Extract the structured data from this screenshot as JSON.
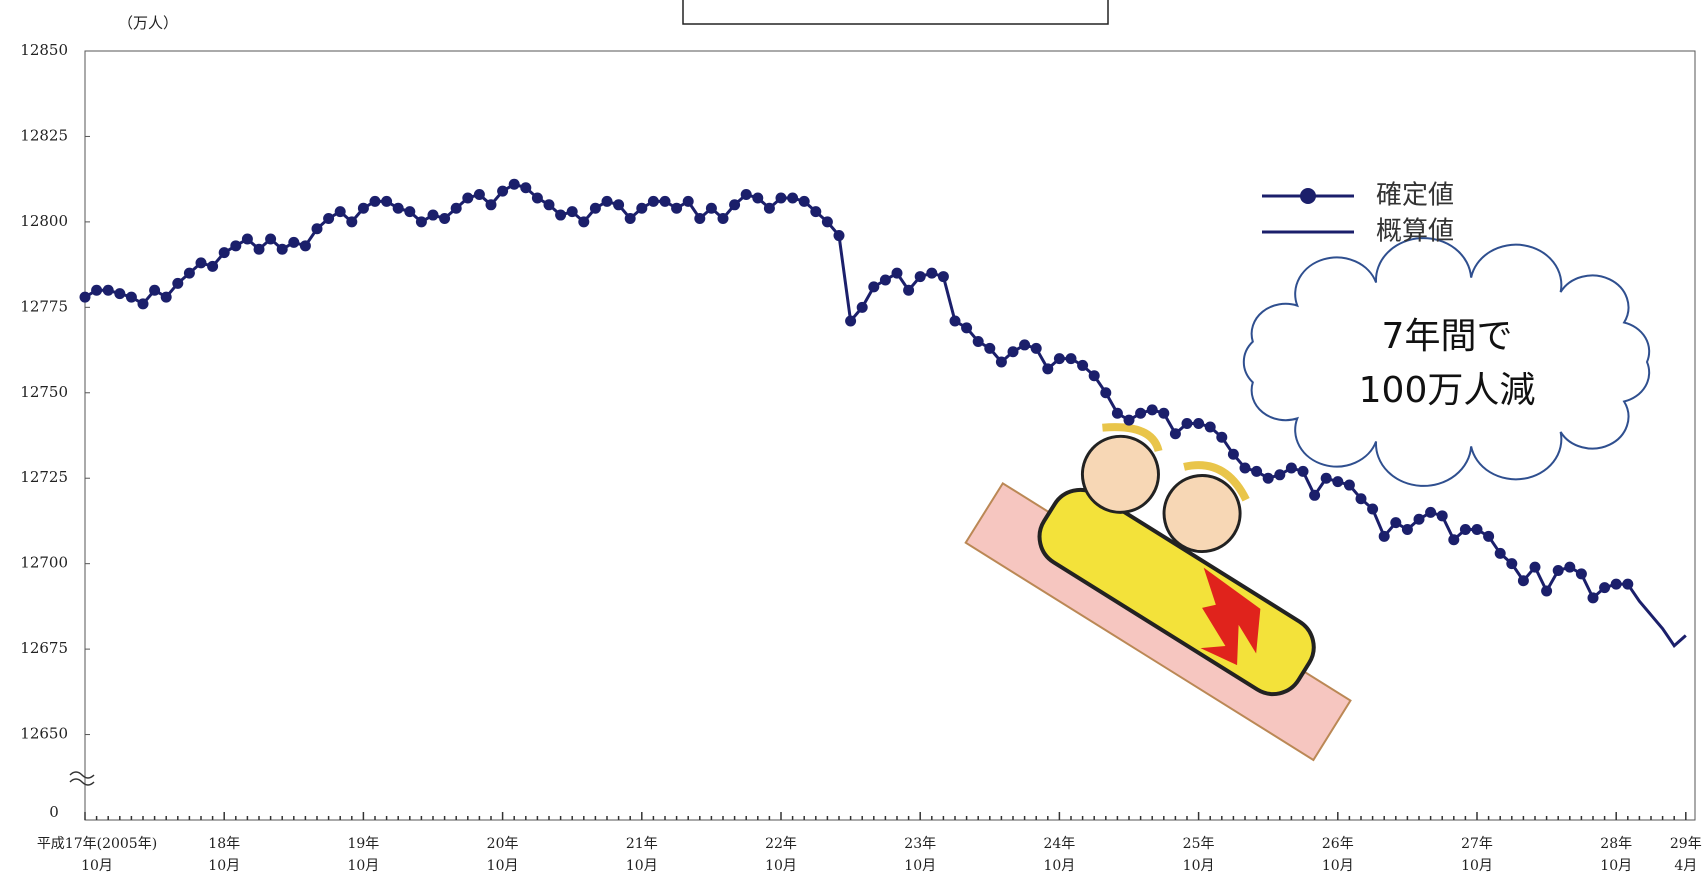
{
  "chart_data": {
    "type": "line",
    "y_label": "（万人）",
    "ylim": [
      12625,
      12850
    ],
    "yticks": [
      12650,
      12675,
      12700,
      12725,
      12750,
      12775,
      12800,
      12825,
      12850
    ],
    "y_break_label": "0",
    "categories": [
      [
        "平成17年(2005年)",
        "10月"
      ],
      null,
      null,
      null,
      null,
      null,
      null,
      null,
      null,
      null,
      null,
      null,
      [
        "18年",
        "10月"
      ],
      null,
      null,
      null,
      null,
      null,
      null,
      null,
      null,
      null,
      null,
      null,
      [
        "19年",
        "10月"
      ],
      null,
      null,
      null,
      null,
      null,
      null,
      null,
      null,
      null,
      null,
      null,
      [
        "20年",
        "10月"
      ],
      null,
      null,
      null,
      null,
      null,
      null,
      null,
      null,
      null,
      null,
      null,
      [
        "21年",
        "10月"
      ],
      null,
      null,
      null,
      null,
      null,
      null,
      null,
      null,
      null,
      null,
      null,
      [
        "22年",
        "10月"
      ],
      null,
      null,
      null,
      null,
      null,
      null,
      null,
      null,
      null,
      null,
      null,
      [
        "23年",
        "10月"
      ],
      null,
      null,
      null,
      null,
      null,
      null,
      null,
      null,
      null,
      null,
      null,
      [
        "24年",
        "10月"
      ],
      null,
      null,
      null,
      null,
      null,
      null,
      null,
      null,
      null,
      null,
      null,
      [
        "25年",
        "10月"
      ],
      null,
      null,
      null,
      null,
      null,
      null,
      null,
      null,
      null,
      null,
      null,
      [
        "26年",
        "10月"
      ],
      null,
      null,
      null,
      null,
      null,
      null,
      null,
      null,
      null,
      null,
      null,
      [
        "27年",
        "10月"
      ],
      null,
      null,
      null,
      null,
      null,
      null,
      null,
      null,
      null,
      null,
      null,
      [
        "28年",
        "10月"
      ],
      null,
      null,
      null,
      null,
      null,
      [
        "29年",
        "4月"
      ]
    ],
    "series": [
      {
        "name": "確定値",
        "color": "#1b1f6b",
        "markers": true,
        "values": [
          12778,
          12780,
          12780,
          12779,
          12778,
          12776,
          12780,
          12778,
          12782,
          12785,
          12788,
          12787,
          12791,
          12793,
          12795,
          12792,
          12795,
          12792,
          12794,
          12793,
          12798,
          12801,
          12803,
          12800,
          12804,
          12806,
          12806,
          12804,
          12803,
          12800,
          12802,
          12801,
          12804,
          12807,
          12808,
          12805,
          12809,
          12811,
          12810,
          12807,
          12805,
          12802,
          12803,
          12800,
          12804,
          12806,
          12805,
          12801,
          12804,
          12806,
          12806,
          12804,
          12806,
          12801,
          12804,
          12801,
          12805,
          12808,
          12807,
          12804,
          12807,
          12807,
          12806,
          12803,
          12800,
          12796,
          12771,
          12775,
          12781,
          12783,
          12785,
          12780,
          12784,
          12785,
          12784,
          12771,
          12769,
          12765,
          12763,
          12759,
          12762,
          12764,
          12763,
          12757,
          12760,
          12760,
          12758,
          12755,
          12750,
          12744,
          12742,
          12744,
          12745,
          12744,
          12738,
          12741,
          12741,
          12740,
          12737,
          12732,
          12728,
          12727,
          12725,
          12726,
          12728,
          12727,
          12720,
          12725,
          12724,
          12723,
          12719,
          12716,
          12708,
          12712,
          12710,
          12713,
          12715,
          12714,
          12707,
          12710,
          12710,
          12708,
          12703,
          12700,
          12695,
          12699,
          12692,
          12698,
          12699,
          12697,
          12690,
          12693,
          12694,
          12694,
          null,
          null,
          null,
          null,
          null
        ]
      },
      {
        "name": "概算値",
        "color": "#1b1f6b",
        "markers": false,
        "values": [
          null,
          null,
          null,
          null,
          null,
          null,
          null,
          null,
          null,
          null,
          null,
          null,
          null,
          null,
          null,
          null,
          null,
          null,
          null,
          null,
          null,
          null,
          null,
          null,
          null,
          null,
          null,
          null,
          null,
          null,
          null,
          null,
          null,
          null,
          null,
          null,
          null,
          null,
          null,
          null,
          null,
          null,
          null,
          null,
          null,
          null,
          null,
          null,
          null,
          null,
          null,
          null,
          null,
          null,
          null,
          null,
          null,
          null,
          null,
          null,
          null,
          null,
          null,
          null,
          null,
          null,
          null,
          null,
          null,
          null,
          null,
          null,
          null,
          null,
          null,
          null,
          null,
          null,
          null,
          null,
          null,
          null,
          null,
          null,
          null,
          null,
          null,
          null,
          null,
          null,
          null,
          null,
          null,
          null,
          null,
          null,
          null,
          null,
          null,
          null,
          null,
          null,
          null,
          null,
          null,
          null,
          null,
          null,
          null,
          null,
          null,
          null,
          null,
          null,
          null,
          null,
          null,
          null,
          null,
          null,
          null,
          null,
          null,
          null,
          null,
          null,
          null,
          null,
          null,
          null,
          null,
          null,
          null,
          12694,
          12689,
          12685,
          12681,
          12676,
          12679
        ]
      }
    ],
    "legend": "upper right",
    "annotation": [
      "7年間で",
      "100万人減"
    ]
  }
}
